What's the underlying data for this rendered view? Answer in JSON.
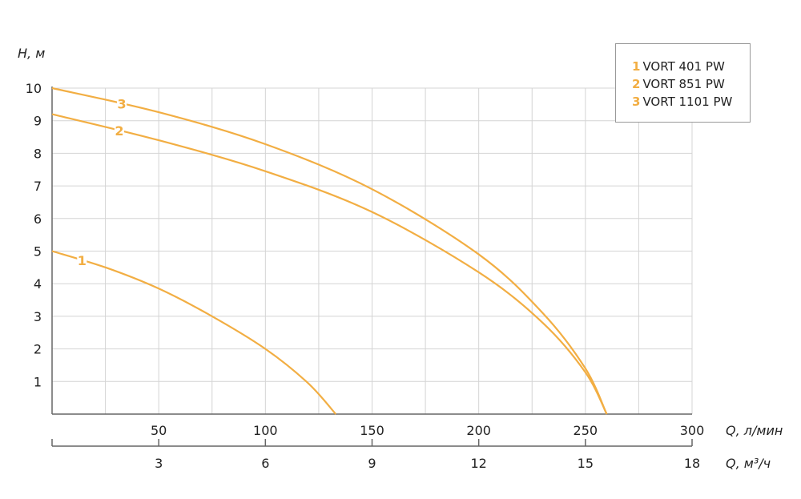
{
  "chart_data": {
    "type": "line",
    "ylabel": "H, м",
    "xlabel": "Q, л/мин",
    "xlabel2": "Q, м³/ч",
    "xlim": [
      0,
      300
    ],
    "ylim": [
      0,
      10
    ],
    "x_ticks": [
      50,
      100,
      150,
      200,
      250,
      300
    ],
    "x2_ticks": [
      3,
      6,
      9,
      12,
      15,
      18
    ],
    "x2_lim": [
      0,
      18
    ],
    "y_ticks": [
      1,
      2,
      3,
      4,
      5,
      6,
      7,
      8,
      9,
      10
    ],
    "grid": true,
    "grid_x_step": 25,
    "legend_position": "top-right",
    "line_color": "#f2ae43",
    "series": [
      {
        "name": "VORT 401 PW",
        "label": "1",
        "points": [
          [
            0,
            5
          ],
          [
            25,
            4.5
          ],
          [
            50,
            3.85
          ],
          [
            75,
            3.0
          ],
          [
            100,
            2.0
          ],
          [
            120,
            0.95
          ],
          [
            133,
            0
          ]
        ]
      },
      {
        "name": "VORT 851 PW",
        "label": "2",
        "points": [
          [
            0,
            9.2
          ],
          [
            50,
            8.4
          ],
          [
            100,
            7.45
          ],
          [
            150,
            6.2
          ],
          [
            200,
            4.35
          ],
          [
            230,
            2.8
          ],
          [
            250,
            1.28
          ],
          [
            260,
            0
          ]
        ]
      },
      {
        "name": "VORT 1101 PW",
        "label": "3",
        "points": [
          [
            0,
            10
          ],
          [
            50,
            9.26
          ],
          [
            100,
            8.28
          ],
          [
            150,
            6.9
          ],
          [
            200,
            4.9
          ],
          [
            230,
            3.1
          ],
          [
            250,
            1.4
          ],
          [
            260,
            0
          ]
        ]
      }
    ]
  }
}
